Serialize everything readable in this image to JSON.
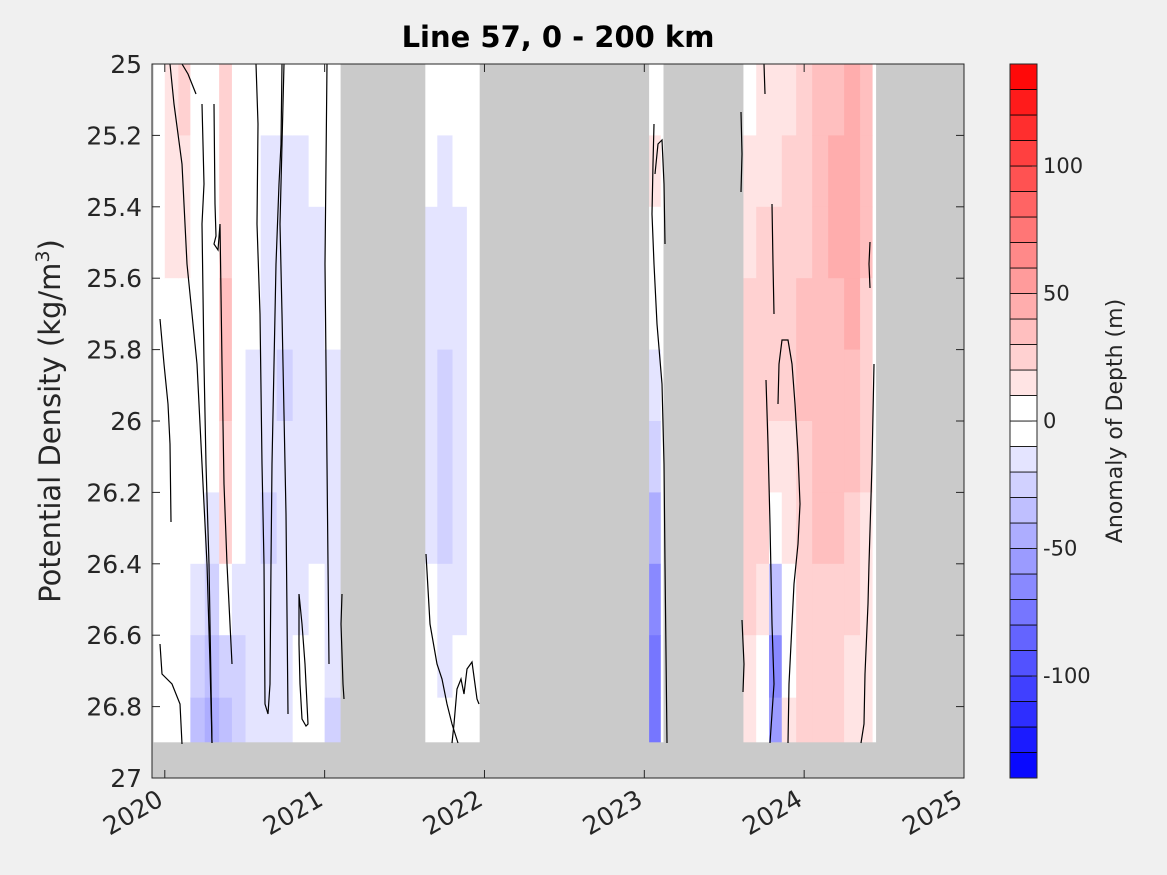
{
  "chart_data": {
    "type": "heatmap",
    "title": "Line 57, 0 - 200 km",
    "ylabel": "Potential Density (kg/m",
    "ylabel_sup": "3",
    "ylabel_close": ")",
    "xlim": [
      2019.92,
      2025.0
    ],
    "ylim": [
      25.0,
      27.0
    ],
    "y_reversed": true,
    "x_ticks": [
      2020,
      2021,
      2022,
      2023,
      2024,
      2025
    ],
    "x_tick_labels": [
      "2020",
      "2021",
      "2022",
      "2023",
      "2024",
      "2025"
    ],
    "y_ticks": [
      25.0,
      25.2,
      25.4,
      25.6,
      25.8,
      26.0,
      26.2,
      26.4,
      26.6,
      26.8,
      27.0
    ],
    "y_tick_labels": [
      "25",
      "25.2",
      "25.4",
      "25.6",
      "25.8",
      "26",
      "26.2",
      "26.4",
      "26.6",
      "26.8",
      "27"
    ],
    "no_data_color": "#cacaca",
    "gap_periods": [
      [
        2021.1,
        2021.63
      ],
      [
        2021.97,
        2023.03
      ],
      [
        2023.12,
        2023.62
      ],
      [
        2024.45,
        2025.0
      ]
    ],
    "bottom_no_data_above": 26.9,
    "colorbar": {
      "label": "Anomaly of Depth (m)",
      "range": [
        -140,
        140
      ],
      "step": 10,
      "ticks": [
        -100,
        -50,
        0,
        50,
        100
      ],
      "tick_labels": [
        "-100",
        "-50",
        "0",
        "50",
        "100"
      ],
      "neg_color": "#0000ff",
      "pos_color": "#ff0000"
    },
    "columns": [
      {
        "x": 2019.95,
        "values": [
          5,
          5,
          5,
          5,
          5,
          5,
          5,
          5,
          5,
          5
        ]
      },
      {
        "x": 2020.05,
        "values": [
          15,
          12,
          10,
          8,
          5,
          3,
          0,
          -5,
          -10,
          -10
        ]
      },
      {
        "x": 2020.12,
        "values": [
          20,
          15,
          10,
          8,
          5,
          5,
          3,
          0,
          -5,
          -5
        ]
      },
      {
        "x": 2020.2,
        "values": [
          5,
          5,
          5,
          3,
          0,
          -5,
          -10,
          -20,
          -30,
          -35
        ]
      },
      {
        "x": 2020.3,
        "values": [
          -5,
          -5,
          0,
          0,
          0,
          0,
          -15,
          -30,
          -40,
          -45
        ]
      },
      {
        "x": 2020.38,
        "values": [
          20,
          20,
          25,
          30,
          30,
          25,
          20,
          0,
          -30,
          -40
        ]
      },
      {
        "x": 2020.46,
        "values": [
          5,
          5,
          5,
          5,
          5,
          0,
          -10,
          -20,
          -25,
          -25
        ]
      },
      {
        "x": 2020.55,
        "values": [
          -5,
          -5,
          -10,
          -10,
          -15,
          -15,
          -15,
          -20,
          -20,
          -20
        ]
      },
      {
        "x": 2020.65,
        "values": [
          -10,
          -15,
          -15,
          -20,
          -20,
          -20,
          -25,
          -20,
          -15,
          -15
        ]
      },
      {
        "x": 2020.75,
        "values": [
          -10,
          -15,
          -20,
          -20,
          -25,
          -20,
          -20,
          -15,
          -15,
          -15
        ]
      },
      {
        "x": 2020.85,
        "values": [
          -10,
          -15,
          -15,
          -20,
          -20,
          -20,
          -20,
          -15,
          -10,
          -10
        ]
      },
      {
        "x": 2020.95,
        "values": [
          -10,
          -10,
          -15,
          -15,
          -15,
          -15,
          -15,
          -10,
          -10,
          -5
        ]
      },
      {
        "x": 2021.05,
        "values": [
          -5,
          -10,
          -10,
          -10,
          -15,
          -15,
          -15,
          -15,
          -20,
          -25
        ]
      },
      {
        "x": 2021.66,
        "values": [
          -10,
          -10,
          -15,
          -15,
          -15,
          -15,
          -15,
          -10,
          -5,
          -5
        ]
      },
      {
        "x": 2021.75,
        "values": [
          -10,
          -15,
          -15,
          -20,
          -25,
          -25,
          -25,
          -20,
          -15,
          -10
        ]
      },
      {
        "x": 2021.85,
        "values": [
          -5,
          -10,
          -15,
          -20,
          -20,
          -20,
          -20,
          -15,
          -10,
          -5
        ]
      },
      {
        "x": 2021.93,
        "values": [
          -5,
          -5,
          -10,
          -10,
          -10,
          -10,
          -10,
          -5,
          -5,
          0
        ]
      },
      {
        "x": 2023.05,
        "values": [
          5,
          10,
          0,
          -5,
          -15,
          -30,
          -50,
          -70,
          -80,
          -80
        ]
      },
      {
        "x": 2023.66,
        "values": [
          5,
          10,
          15,
          20,
          20,
          20,
          25,
          20,
          15,
          10
        ]
      },
      {
        "x": 2023.74,
        "values": [
          10,
          15,
          20,
          20,
          25,
          25,
          20,
          10,
          0,
          -10
        ]
      },
      {
        "x": 2023.82,
        "values": [
          10,
          15,
          20,
          25,
          20,
          15,
          0,
          -40,
          -70,
          -60
        ]
      },
      {
        "x": 2023.9,
        "values": [
          15,
          20,
          25,
          20,
          20,
          15,
          10,
          5,
          5,
          10
        ]
      },
      {
        "x": 2024.0,
        "values": [
          20,
          25,
          25,
          30,
          30,
          25,
          25,
          25,
          20,
          20
        ]
      },
      {
        "x": 2024.1,
        "values": [
          30,
          30,
          35,
          35,
          30,
          30,
          30,
          25,
          25,
          20
        ]
      },
      {
        "x": 2024.2,
        "values": [
          35,
          40,
          40,
          35,
          35,
          30,
          30,
          25,
          20,
          20
        ]
      },
      {
        "x": 2024.3,
        "values": [
          40,
          40,
          40,
          40,
          35,
          30,
          25,
          20,
          15,
          15
        ]
      },
      {
        "x": 2024.4,
        "values": [
          30,
          30,
          30,
          25,
          25,
          20,
          15,
          10,
          10,
          10
        ]
      }
    ],
    "column_densities": [
      25.1,
      25.3,
      25.5,
      25.7,
      25.9,
      26.1,
      26.3,
      26.5,
      26.7,
      26.85
    ]
  }
}
